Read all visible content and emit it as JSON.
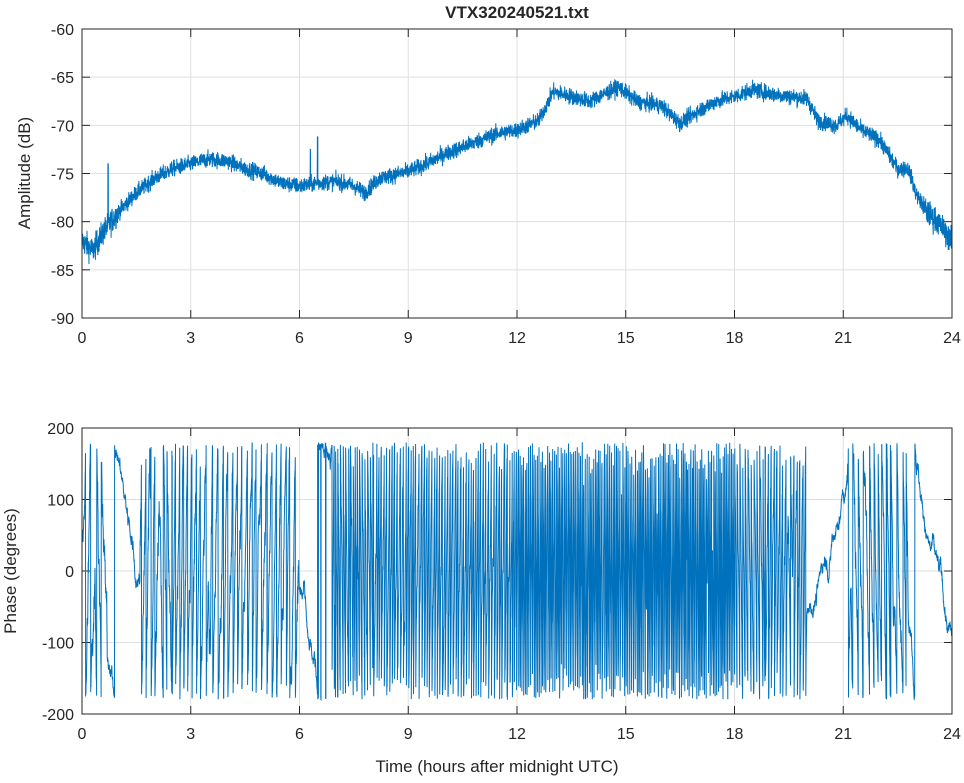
{
  "chart_data": [
    {
      "type": "line",
      "title": "VTX320240521.txt",
      "xlabel": "",
      "ylabel": "Amplitude (dB)",
      "xlim": [
        0,
        24
      ],
      "ylim": [
        -90,
        -60
      ],
      "xticks": [
        "0",
        "3",
        "6",
        "9",
        "12",
        "15",
        "18",
        "21",
        "24"
      ],
      "yticks": [
        "-60",
        "-65",
        "-70",
        "-75",
        "-80",
        "-85",
        "-90"
      ],
      "grid": true,
      "color": "#0072bd",
      "noise_band_db": 0.8,
      "x": [
        0,
        0.3,
        0.6,
        1,
        1.5,
        2,
        2.5,
        3,
        3.5,
        4,
        4.5,
        5,
        5.5,
        6,
        6.5,
        7,
        7.5,
        7.8,
        8.2,
        9,
        9.5,
        10,
        11,
        11.5,
        12,
        12.6,
        13,
        13.5,
        14,
        14.8,
        15.3,
        16,
        16.5,
        17,
        17.5,
        18,
        18.5,
        19,
        19.5,
        20,
        20.3,
        20.8,
        21.1,
        21.5,
        22,
        22.5,
        22.8,
        23,
        23.3,
        23.6,
        24
      ],
      "y": [
        -82,
        -83,
        -81,
        -79,
        -77,
        -75.5,
        -74.5,
        -74,
        -73.5,
        -73.7,
        -74.5,
        -75,
        -76,
        -76.3,
        -76,
        -75.8,
        -76.3,
        -77,
        -75.5,
        -74.8,
        -74,
        -73,
        -71.5,
        -70.8,
        -70.5,
        -69.5,
        -66.5,
        -67,
        -67.5,
        -66,
        -67.5,
        -68,
        -69.8,
        -68.5,
        -67.5,
        -67,
        -66.3,
        -66.7,
        -67,
        -67.2,
        -69.5,
        -70,
        -69,
        -70.5,
        -71.5,
        -74.5,
        -74.5,
        -77,
        -79,
        -80,
        -82
      ],
      "spikes": [
        [
          0.72,
          -74
        ],
        [
          6.3,
          -72.5
        ],
        [
          6.5,
          -71.2
        ]
      ]
    },
    {
      "type": "line",
      "title": "",
      "xlabel": "Time (hours after midnight UTC)",
      "ylabel": "Phase (degrees)",
      "xlim": [
        0,
        24
      ],
      "ylim": [
        -200,
        200
      ],
      "xticks": [
        "0",
        "3",
        "6",
        "9",
        "12",
        "15",
        "18",
        "21",
        "24"
      ],
      "yticks": [
        "200",
        "100",
        "0",
        "-100",
        "-200"
      ],
      "grid": true,
      "color": "#0072bd",
      "wrap_limits": [
        -180,
        180
      ],
      "phase_rate_segments": [
        {
          "from": 0,
          "to": 0.7,
          "wraps_per_hour": 6
        },
        {
          "from": 0.7,
          "to": 1.6,
          "wraps_per_hour": 0.8
        },
        {
          "from": 1.6,
          "to": 6,
          "wraps_per_hour": 8
        },
        {
          "from": 6,
          "to": 6.9,
          "wraps_per_hour": 0.6
        },
        {
          "from": 6.9,
          "to": 12,
          "wraps_per_hour": 14
        },
        {
          "from": 12,
          "to": 18,
          "wraps_per_hour": 22
        },
        {
          "from": 18,
          "to": 20,
          "wraps_per_hour": 12
        },
        {
          "from": 20,
          "to": 21.1,
          "wraps_per_hour": 0.8
        },
        {
          "from": 21.1,
          "to": 22.8,
          "wraps_per_hour": 7
        },
        {
          "from": 22.8,
          "to": 24,
          "wraps_per_hour": 1
        }
      ]
    }
  ]
}
